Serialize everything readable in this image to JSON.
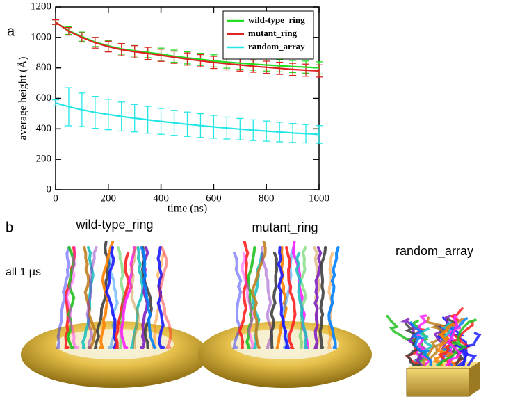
{
  "chart_data": {
    "type": "line",
    "panel_label": "a",
    "x_label": "time (ns)",
    "y_label": "average height (Å)",
    "x": [
      0,
      50,
      100,
      150,
      200,
      250,
      300,
      350,
      400,
      450,
      500,
      550,
      600,
      650,
      700,
      750,
      800,
      850,
      900,
      950,
      1000
    ],
    "series": [
      {
        "name": "wild-type_ring",
        "color": "#22dd22",
        "values": [
          1100,
          1045,
          1005,
          970,
          945,
          925,
          912,
          902,
          890,
          877,
          866,
          856,
          846,
          838,
          831,
          825,
          819,
          814,
          809,
          805,
          800
        ],
        "errors": [
          15,
          25,
          30,
          30,
          35,
          35,
          35,
          35,
          40,
          40,
          40,
          40,
          40,
          40,
          40,
          40,
          40,
          40,
          40,
          40,
          40
        ]
      },
      {
        "name": "mutant_ring",
        "color": "#dd2222",
        "values": [
          1100,
          1040,
          1000,
          965,
          940,
          920,
          906,
          895,
          883,
          870,
          858,
          847,
          836,
          827,
          819,
          811,
          804,
          797,
          790,
          785,
          780
        ],
        "errors": [
          15,
          25,
          30,
          35,
          35,
          40,
          40,
          40,
          40,
          40,
          40,
          40,
          40,
          40,
          40,
          40,
          40,
          40,
          40,
          40,
          40
        ]
      },
      {
        "name": "random_array",
        "color": "#22e6e6",
        "values": [
          570,
          545,
          525,
          508,
          494,
          481,
          470,
          459,
          449,
          439,
          430,
          421,
          413,
          405,
          398,
          391,
          385,
          379,
          373,
          368,
          363
        ],
        "errors": [
          20,
          125,
          110,
          105,
          100,
          95,
          90,
          88,
          85,
          82,
          80,
          78,
          75,
          72,
          70,
          68,
          66,
          64,
          62,
          60,
          58
        ]
      }
    ],
    "xlim": [
      0,
      1000
    ],
    "xticks": [
      0,
      200,
      400,
      600,
      800,
      1000
    ],
    "ylim": [
      0,
      1200
    ],
    "yticks": [
      0,
      200,
      400,
      600,
      800,
      1000,
      1200
    ],
    "legend": "top-right"
  },
  "panel_b": {
    "label": "b",
    "note": "all 1 μs",
    "titles": [
      "wild-type_ring",
      "mutant_ring",
      "random_array"
    ]
  }
}
